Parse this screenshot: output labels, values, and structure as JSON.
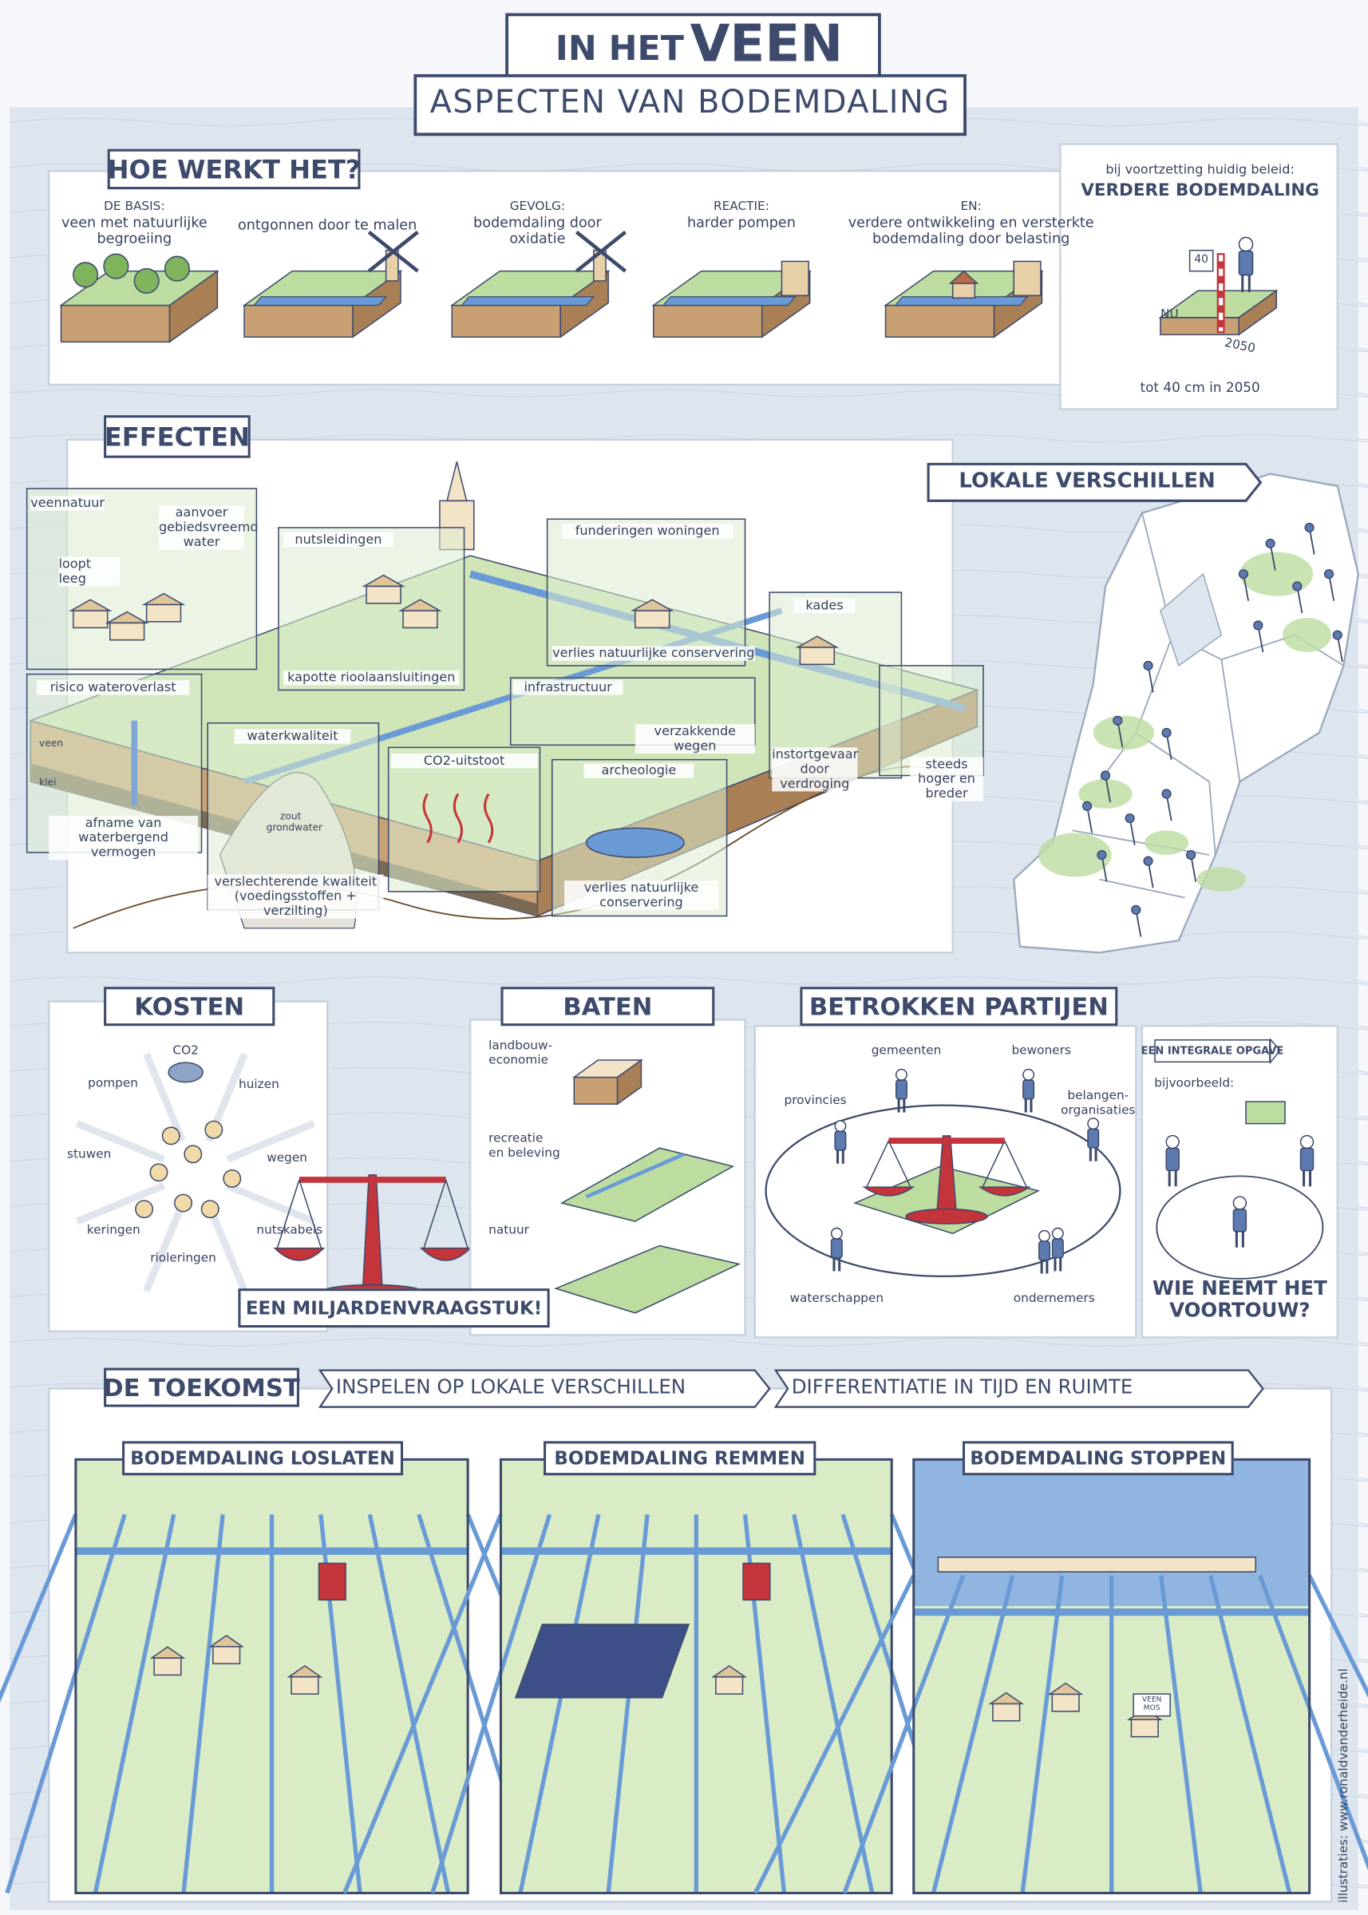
{
  "header": {
    "title_small": "IN HET",
    "title_big": "VEEN",
    "subtitle": "ASPECTEN VAN BODEMDALING"
  },
  "how_it_works": {
    "title": "HOE WERKT HET?",
    "steps": [
      {
        "heading": "DE BASIS:",
        "text": "veen met natuurlijke begroeiing"
      },
      {
        "text": "ontgonnen door te malen"
      },
      {
        "heading": "GEVOLG:",
        "text": "bodemdaling door oxidatie"
      },
      {
        "heading": "REACTIE:",
        "text": "harder pompen"
      },
      {
        "heading": "EN:",
        "text": "verdere ontwikkeling en versterkte bodemdaling door belasting"
      }
    ],
    "outlook": {
      "intro": "bij voortzetting huidig beleid:",
      "heading": "VERDERE BODEMDALING",
      "gauge": "40",
      "now": "NU",
      "year": "2050",
      "caption": "tot 40 cm in 2050"
    }
  },
  "effects": {
    "title": "EFFECTEN",
    "labels": [
      "veennatuur",
      "loopt leeg",
      "aanvoer gebiedsvreemd water",
      "nutsleidingen",
      "kapotte rioolaansluitingen",
      "funderingen woningen",
      "verlies natuurlijke conservering",
      "kades",
      "risico wateroverlast",
      "afname van waterbergend vermogen",
      "waterkwaliteit",
      "verslechterende kwaliteit (voedingsstoffen + verzilting)",
      "CO2-uitstoot",
      "infrastructuur",
      "verzakkende wegen",
      "archeologie",
      "verlies natuurlijke conservering",
      "instortgevaar door verdroging",
      "steeds hoger en breder",
      "veen",
      "klei",
      "zout grondwater"
    ]
  },
  "local_differences": {
    "title": "LOKALE VERSCHILLEN"
  },
  "costs": {
    "title": "KOSTEN",
    "items": [
      "CO2",
      "pompen",
      "huizen",
      "stuwen",
      "wegen",
      "keringen",
      "rioleringen",
      "nutskabels"
    ],
    "banner": "EEN MILJARDENVRAAGSTUK!"
  },
  "benefits": {
    "title": "BATEN",
    "items": [
      "landbouw-economie",
      "recreatie en beleving",
      "natuur"
    ]
  },
  "parties": {
    "title": "BETROKKEN PARTIJEN",
    "items": [
      "gemeenten",
      "bewoners",
      "provincies",
      "belangen-organisaties",
      "waterschappen",
      "ondernemers"
    ],
    "integral": {
      "tag": "EEN INTEGRALE OPGAVE",
      "example": "bijvoorbeeld:",
      "question": "WIE NEEMT HET VOORTOUW?"
    }
  },
  "future": {
    "title": "DE TOEKOMST",
    "step1": "INSPELEN OP LOKALE VERSCHILLEN",
    "step2": "DIFFERENTIATIE IN TIJD EN RUIMTE",
    "scenarios": [
      "BODEMDALING LOSLATEN",
      "BODEMDALING REMMEN",
      "BODEMDALING STOPPEN"
    ],
    "sign": "VEEN MOS"
  },
  "credit": "illustraties: www.ronaldvanderheide.nl"
}
